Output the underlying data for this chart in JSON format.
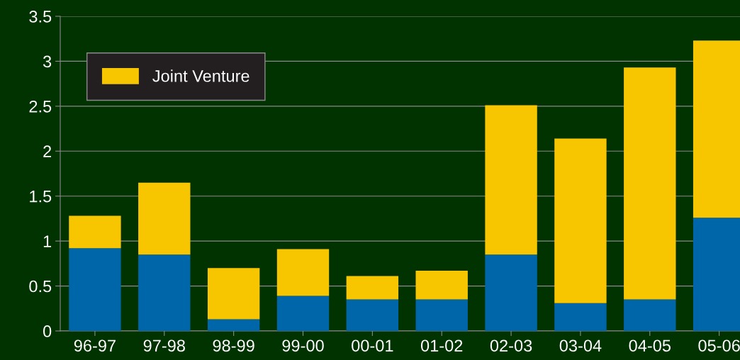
{
  "chart_data": {
    "type": "bar",
    "stacked": true,
    "categories": [
      "96-97",
      "97-98",
      "98-99",
      "99-00",
      "00-01",
      "01-02",
      "02-03",
      "03-04",
      "04-05",
      "05-06"
    ],
    "series": [
      {
        "color": "#0066aa",
        "values": [
          0.92,
          0.85,
          0.13,
          0.39,
          0.35,
          0.35,
          0.85,
          0.31,
          0.35,
          1.26
        ]
      },
      {
        "name": "Joint Venture",
        "color": "#f8c600",
        "values": [
          0.36,
          0.8,
          0.57,
          0.52,
          0.26,
          0.32,
          1.66,
          1.83,
          2.58,
          1.97
        ]
      }
    ],
    "ylim": [
      0,
      3.5
    ],
    "yticks": [
      0,
      0.5,
      1,
      1.5,
      2,
      2.5,
      3,
      3.5
    ],
    "grid": "y",
    "legend": "top left"
  }
}
